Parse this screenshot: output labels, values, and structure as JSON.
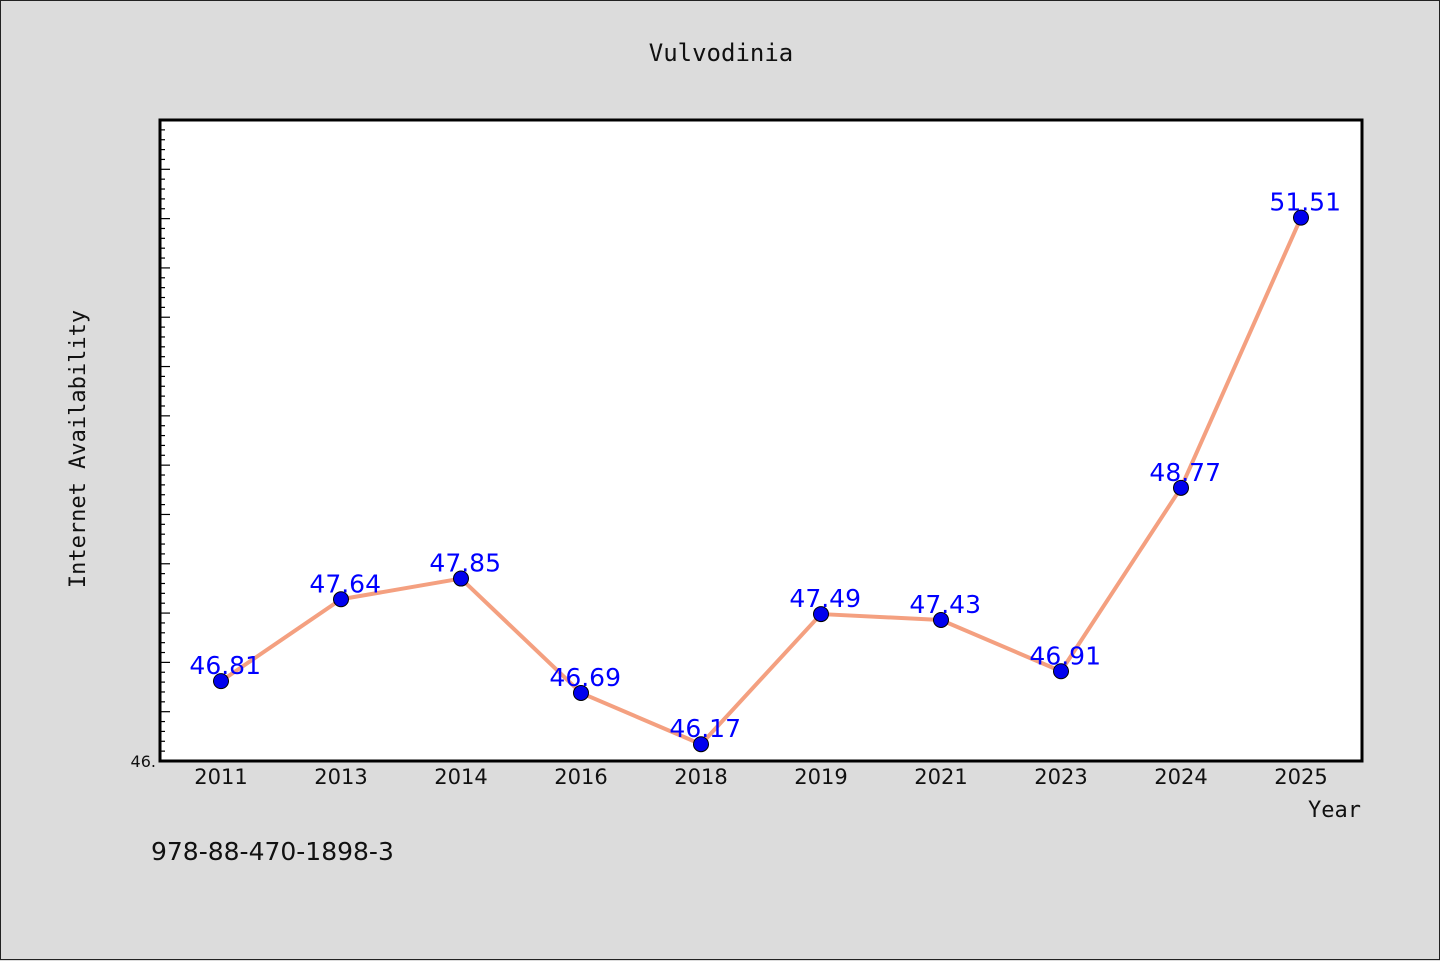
{
  "chart_data": {
    "type": "line",
    "title": "Vulvodinia",
    "xlabel": "Year",
    "ylabel": "Internet Availability",
    "categories": [
      "2011",
      "2013",
      "2014",
      "2016",
      "2018",
      "2019",
      "2021",
      "2023",
      "2024",
      "2025"
    ],
    "series": [
      {
        "values": [
          46.81,
          47.64,
          47.85,
          46.69,
          46.17,
          47.49,
          47.43,
          46.91,
          48.77,
          51.51
        ],
        "data_labels": [
          "46.81",
          "47.64",
          "47.85",
          "46.69",
          "46.17",
          "47.49",
          "47.43",
          "46.91",
          "48.77",
          "51.51"
        ]
      }
    ],
    "y_tick_labels": [
      "46."
    ],
    "ylim": [
      46.0,
      52.5
    ],
    "grid": false,
    "legend": "none",
    "line_color": "#f4a080",
    "marker_color": "#0000ee",
    "label_color": "#0000ff"
  },
  "footer": {
    "code": "978-88-470-1898-3"
  }
}
